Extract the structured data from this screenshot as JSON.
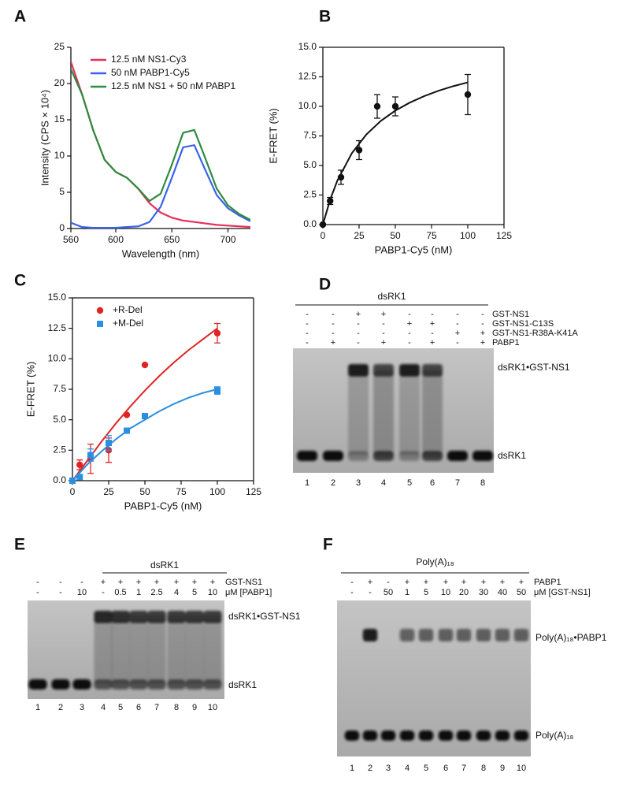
{
  "chart_data": [
    {
      "type": "line",
      "panel": "A",
      "x_label": "Wavelength (nm)",
      "y_label": "Intensity (CPS × 10⁴)",
      "x": [
        560,
        570,
        580,
        590,
        600,
        610,
        620,
        630,
        640,
        650,
        660,
        670,
        680,
        690,
        700,
        710,
        720
      ],
      "series": [
        {
          "name": "12.5 nM NS1-Cy3",
          "color": "#e8305a",
          "values": [
            23,
            18.5,
            13.5,
            9.5,
            7.8,
            7.0,
            5.5,
            3.5,
            2.2,
            1.5,
            1.1,
            0.9,
            0.7,
            0.5,
            0.4,
            0.3,
            0.2
          ]
        },
        {
          "name": "50 nM PABP1-Cy5",
          "color": "#3a62e8",
          "values": [
            0.8,
            0.2,
            0.1,
            0.1,
            0.1,
            0.2,
            0.3,
            0.9,
            3.0,
            7.0,
            11.2,
            11.5,
            8.0,
            4.6,
            2.8,
            1.8,
            1.0
          ]
        },
        {
          "name": "12.5 nM NS1 + 50 nM PABP1",
          "color": "#2e8b3e",
          "values": [
            22,
            18.5,
            13.5,
            9.5,
            7.8,
            7.0,
            5.5,
            3.8,
            4.8,
            8.8,
            13.2,
            13.6,
            9.6,
            5.5,
            3.2,
            2.0,
            1.2
          ]
        }
      ],
      "xlim": [
        560,
        720
      ],
      "xticks": [
        560,
        600,
        650,
        700
      ],
      "ylim": [
        0,
        25
      ],
      "yticks": [
        0,
        5,
        10,
        15,
        20,
        25
      ],
      "legend": "upper left"
    },
    {
      "type": "scatter",
      "panel": "B",
      "x_label": "PABP1-Cy5 (nM)",
      "y_label": "E-FRET (%)",
      "box": true,
      "series": [
        {
          "color": "#111111",
          "marker": "circle",
          "x": [
            0,
            5,
            12.5,
            25,
            37.5,
            50,
            100
          ],
          "values": [
            0,
            2,
            4,
            6.3,
            10,
            10,
            11
          ],
          "errors": [
            0,
            0.3,
            0.6,
            0.8,
            1,
            0.8,
            1.7
          ],
          "fit": {
            "x": [
              0,
              5,
              10,
              20,
              30,
              40,
              50,
              60,
              70,
              80,
              90,
              100
            ],
            "values": [
              0,
              2.1,
              3.72,
              6.04,
              7.62,
              8.77,
              9.64,
              10.32,
              10.87,
              11.33,
              11.71,
              12.03
            ]
          }
        }
      ],
      "xlim": [
        0,
        125
      ],
      "xticks": [
        0,
        25,
        50,
        75,
        100,
        125
      ],
      "ylim": [
        0,
        15
      ],
      "yticks": [
        {
          "value": 0,
          "label": "0.0"
        },
        {
          "value": 2.5,
          "label": "2.5"
        },
        {
          "value": 5,
          "label": "5.0"
        },
        {
          "value": 7.5,
          "label": "7.5"
        },
        {
          "value": 10,
          "label": "10.0"
        },
        {
          "value": 12.5,
          "label": "12.5"
        },
        {
          "value": 15,
          "label": "15.0"
        }
      ]
    },
    {
      "type": "scatter",
      "panel": "C",
      "x_label": "PABP1-Cy5 (nM)",
      "y_label": "E-FRET (%)",
      "box": true,
      "legend": "upper left",
      "series": [
        {
          "name": "+R-Del",
          "color": "#e02424",
          "marker": "circle",
          "x": [
            0,
            5,
            12.5,
            25,
            37.5,
            50,
            100
          ],
          "values": [
            0,
            1.3,
            1.8,
            2.5,
            5.4,
            9.5,
            12.1
          ],
          "errors": [
            0,
            0.4,
            1.2,
            1,
            0,
            0,
            0.8
          ],
          "fit": {
            "x": [
              0,
              10,
              20,
              30,
              40,
              50,
              60,
              70,
              80,
              90,
              100
            ],
            "values": [
              0,
              1.6,
              3.2,
              4.7,
              6.1,
              7.4,
              8.6,
              9.7,
              10.7,
              11.6,
              12.5
            ]
          }
        },
        {
          "name": "+M-Del",
          "color": "#2b8fe0",
          "marker": "square",
          "x": [
            0,
            5,
            12.5,
            25,
            37.5,
            50,
            100
          ],
          "values": [
            0,
            0.3,
            2.1,
            3.1,
            4.1,
            5.3,
            7.4
          ],
          "errors": [
            0,
            0.2,
            0.5,
            0.6,
            0,
            0,
            0.3
          ],
          "fit": {
            "x": [
              0,
              10,
              20,
              30,
              40,
              50,
              60,
              70,
              80,
              90,
              100
            ],
            "values": [
              0,
              1.3,
              2.4,
              3.4,
              4.3,
              5.0,
              5.7,
              6.3,
              6.8,
              7.2,
              7.5
            ]
          }
        }
      ],
      "xlim": [
        0,
        125
      ],
      "xticks": [
        0,
        25,
        50,
        75,
        100,
        125
      ],
      "ylim": [
        0,
        15
      ],
      "yticks": [
        {
          "value": 0,
          "label": "0.0"
        },
        {
          "value": 2.5,
          "label": "2.5"
        },
        {
          "value": 5,
          "label": "5.0"
        },
        {
          "value": 7.5,
          "label": "7.5"
        },
        {
          "value": 10,
          "label": "10.0"
        },
        {
          "value": 12.5,
          "label": "12.5"
        },
        {
          "value": 15,
          "label": "15.0"
        }
      ]
    }
  ],
  "gels": [
    {
      "panel": "D",
      "title": "dsRK1",
      "rows": [
        {
          "label": "GST-NS1",
          "cells": [
            "-",
            "-",
            "+",
            "+",
            "-",
            "-",
            "-",
            "-"
          ]
        },
        {
          "label": "GST-NS1-C13S",
          "cells": [
            "-",
            "-",
            "-",
            "-",
            "+",
            "+",
            "-",
            "-"
          ]
        },
        {
          "label": "GST-NS1-R38A-K41A",
          "cells": [
            "-",
            "-",
            "-",
            "-",
            "-",
            "-",
            "+",
            "+"
          ]
        },
        {
          "label": "PABP1",
          "cells": [
            "-",
            "+",
            "-",
            "+",
            "-",
            "+",
            "-",
            "+"
          ]
        }
      ],
      "bands": [
        "dsRK1•GST-NS1",
        "dsRK1"
      ],
      "lanes": [
        1,
        2,
        3,
        4,
        5,
        6,
        7,
        8
      ]
    },
    {
      "panel": "E",
      "title": "dsRK1",
      "rows": [
        {
          "label": "GST-NS1",
          "cells": [
            "-",
            "-",
            "-",
            "+",
            "+",
            "+",
            "+",
            "+",
            "+",
            "+"
          ]
        },
        {
          "label": "μM [PABP1]",
          "cells": [
            "-",
            "-",
            "10",
            "-",
            "0.5",
            "1",
            "2.5",
            "4",
            "5",
            "10"
          ]
        }
      ],
      "bands": [
        "dsRK1•GST-NS1",
        "dsRK1"
      ],
      "lanes": [
        1,
        2,
        3,
        4,
        5,
        6,
        7,
        8,
        9,
        10
      ]
    },
    {
      "panel": "F",
      "title": "Poly(A)₁₈",
      "rows": [
        {
          "label": "PABP1",
          "cells": [
            "-",
            "+",
            "-",
            "+",
            "+",
            "+",
            "+",
            "+",
            "+",
            "+"
          ]
        },
        {
          "label": "μM [GST-NS1]",
          "cells": [
            "-",
            "-",
            "50",
            "1",
            "5",
            "10",
            "20",
            "30",
            "40",
            "50"
          ]
        }
      ],
      "bands": [
        "Poly(A)₁₈•PABP1",
        "Poly(A)₁₈"
      ],
      "lanes": [
        1,
        2,
        3,
        4,
        5,
        6,
        7,
        8,
        9,
        10
      ]
    }
  ]
}
